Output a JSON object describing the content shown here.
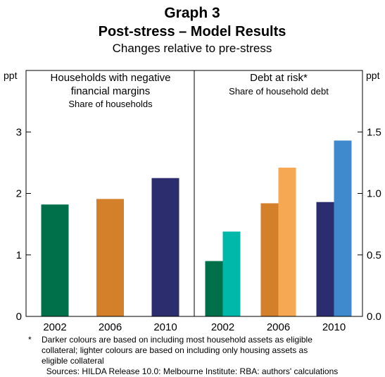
{
  "title": "Graph 3",
  "subtitle": "Post-stress – Model Results",
  "description": "Changes relative to pre-stress",
  "units": {
    "left": "ppt",
    "right": "ppt"
  },
  "panels": {
    "left": {
      "title_line1": "Households with negative",
      "title_line2": "financial margins",
      "subtitle": "Share of households"
    },
    "right": {
      "title_line1": "Debt at risk*",
      "subtitle": "Share of household debt"
    }
  },
  "footnote": {
    "marker": "*",
    "line1": "Darker colours are based on including most household assets as eligible",
    "line2": "collateral; lighter colours are based on including only housing assets as",
    "line3": "eligible collateral"
  },
  "sources": "Sources: HILDA Release 10.0: Melbourne Institute: RBA: authors' calculations",
  "colors": {
    "green_dark": "#00704a",
    "green_light": "#00b8a9",
    "orange_dark": "#d4802b",
    "orange_light": "#f7a852",
    "navy_dark": "#2b2d6e",
    "blue_light": "#3e8acd"
  },
  "chart_data": [
    {
      "type": "bar",
      "panel": "left",
      "categories": [
        "2002",
        "2006",
        "2010"
      ],
      "ylim": [
        0,
        4
      ],
      "yticks": [
        "0",
        "1",
        "2",
        "3"
      ],
      "series": [
        {
          "values": [
            1.82,
            1.91,
            2.25
          ],
          "colors": [
            "#00704a",
            "#d4802b",
            "#2b2d6e"
          ]
        }
      ]
    },
    {
      "type": "bar",
      "panel": "right",
      "categories": [
        "2002",
        "2006",
        "2010"
      ],
      "ylim": [
        0,
        2.0
      ],
      "yticks": [
        "0.0",
        "0.5",
        "1.0",
        "1.5"
      ],
      "series": [
        {
          "values": [
            0.45,
            0.92,
            0.93
          ],
          "colors": [
            "#00704a",
            "#d4802b",
            "#2b2d6e"
          ]
        },
        {
          "values": [
            0.69,
            1.21,
            1.43
          ],
          "colors": [
            "#00b8a9",
            "#f7a852",
            "#3e8acd"
          ]
        }
      ]
    }
  ]
}
